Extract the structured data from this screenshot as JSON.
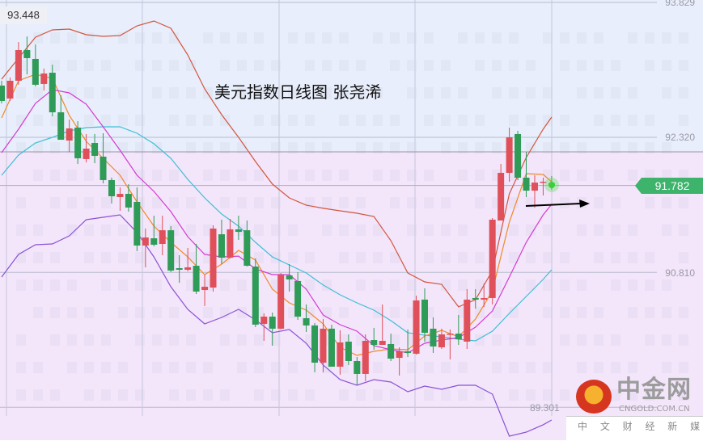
{
  "title": "美元指数日线图 张尧浠",
  "high_label": "93.448",
  "last_price": "91.782",
  "price_axis": [
    "93.829",
    "92.320",
    "90.810",
    "89.301"
  ],
  "watermark": {
    "name": "中金网",
    "domain": "CNGOLD.COM.CN",
    "slogan": "中 文 财 经 新 媒 体"
  },
  "colors": {
    "up": "#e0505a",
    "down": "#2e9b57",
    "upper_band": "#d2563e",
    "mid_band": "#3cc0d6",
    "lower_band": "#8b53d6",
    "ma_fast": "#f08a24",
    "ma_slow": "#d43cd0",
    "price_tag": "#3db36c"
  },
  "chart_data": {
    "type": "candlestick",
    "title": "美元指数日线图 张尧浠",
    "ylim": [
      88.85,
      93.86
    ],
    "y_ticks": [
      93.829,
      92.32,
      90.81,
      89.301
    ],
    "grid": true,
    "candle_format": [
      "open",
      "high",
      "low",
      "close"
    ],
    "candles": [
      [
        92.899,
        92.953,
        92.7,
        92.727
      ],
      [
        92.754,
        92.989,
        92.727,
        92.953
      ],
      [
        92.953,
        93.386,
        92.908,
        93.296
      ],
      [
        93.296,
        93.448,
        93.025,
        93.206
      ],
      [
        93.197,
        93.359,
        92.889,
        92.908
      ],
      [
        92.917,
        93.088,
        92.844,
        93.034
      ],
      [
        93.043,
        93.133,
        92.555,
        92.6
      ],
      [
        92.6,
        92.79,
        92.293,
        92.293
      ],
      [
        92.284,
        92.519,
        92.158,
        92.42
      ],
      [
        92.429,
        92.501,
        92.022,
        92.086
      ],
      [
        92.077,
        92.357,
        92.04,
        92.194
      ],
      [
        92.257,
        92.357,
        92.031,
        92.113
      ],
      [
        92.104,
        92.366,
        91.806,
        91.842
      ],
      [
        91.842,
        91.869,
        91.58,
        91.661
      ],
      [
        91.652,
        91.76,
        91.498,
        91.688
      ],
      [
        91.688,
        91.796,
        91.489,
        91.535
      ],
      [
        91.598,
        91.76,
        91.047,
        91.11
      ],
      [
        91.11,
        91.3,
        90.866,
        91.2
      ],
      [
        91.191,
        91.444,
        91.101,
        91.119
      ],
      [
        91.128,
        91.444,
        91.002,
        91.281
      ],
      [
        91.281,
        91.327,
        90.812,
        90.83
      ],
      [
        90.857,
        91.002,
        90.694,
        90.839
      ],
      [
        90.839,
        91.083,
        90.821,
        90.866
      ],
      [
        90.884,
        91.128,
        90.568,
        90.595
      ],
      [
        90.613,
        90.785,
        90.433,
        90.649
      ],
      [
        90.64,
        91.336,
        90.595,
        91.3
      ],
      [
        91.236,
        91.399,
        90.902,
        90.974
      ],
      [
        90.974,
        91.408,
        90.965,
        91.291
      ],
      [
        91.291,
        91.444,
        91.173,
        91.263
      ],
      [
        91.281,
        91.39,
        90.875,
        90.884
      ],
      [
        90.875,
        90.965,
        90.198,
        90.225
      ],
      [
        90.234,
        90.351,
        90.044,
        90.315
      ],
      [
        90.315,
        90.36,
        89.99,
        90.18
      ],
      [
        90.18,
        90.803,
        90.171,
        90.785
      ],
      [
        90.776,
        90.902,
        90.595,
        90.731
      ],
      [
        90.713,
        90.812,
        90.279,
        90.315
      ],
      [
        90.297,
        90.451,
        90.143,
        90.216
      ],
      [
        90.216,
        90.243,
        89.692,
        89.8
      ],
      [
        89.8,
        90.288,
        89.692,
        90.18
      ],
      [
        90.18,
        90.225,
        89.755,
        89.755
      ],
      [
        89.755,
        90.162,
        89.665,
        90.026
      ],
      [
        90.035,
        90.116,
        89.773,
        89.818
      ],
      [
        89.818,
        89.863,
        89.547,
        89.674
      ],
      [
        89.674,
        90.116,
        89.592,
        90.044
      ],
      [
        90.053,
        90.189,
        89.945,
        89.999
      ],
      [
        89.999,
        90.451,
        89.999,
        90.044
      ],
      [
        90.008,
        90.125,
        89.818,
        89.845
      ],
      [
        89.854,
        89.972,
        89.656,
        89.927
      ],
      [
        89.927,
        90.171,
        89.863,
        89.909
      ],
      [
        89.9,
        90.55,
        89.89,
        90.496
      ],
      [
        90.505,
        90.631,
        90.035,
        90.134
      ],
      [
        90.18,
        90.306,
        89.909,
        89.981
      ],
      [
        89.972,
        90.18,
        89.954,
        90.116
      ],
      [
        90.116,
        90.171,
        89.836,
        90.125
      ],
      [
        90.125,
        90.333,
        89.999,
        90.062
      ],
      [
        90.035,
        90.622,
        89.954,
        90.505
      ],
      [
        90.523,
        90.622,
        90.405,
        90.505
      ],
      [
        90.505,
        90.685,
        90.423,
        90.523
      ],
      [
        90.523,
        91.417,
        90.451,
        91.399
      ],
      [
        91.39,
        92.022,
        91.39,
        91.923
      ],
      [
        91.923,
        92.429,
        91.824,
        92.32
      ],
      [
        92.357,
        92.393,
        91.842,
        91.869
      ],
      [
        91.869,
        92.158,
        91.652,
        91.724
      ],
      [
        91.724,
        91.896,
        91.535,
        91.814
      ],
      [
        91.814,
        91.869,
        91.67,
        91.824
      ],
      [
        91.806,
        91.887,
        91.733,
        91.782
      ]
    ],
    "line_sample_indices": [
      0,
      2,
      4,
      6,
      8,
      10,
      12,
      14,
      16,
      18,
      20,
      22,
      24,
      26,
      28,
      30,
      32,
      34,
      36,
      38,
      40,
      42,
      44,
      46,
      48,
      50,
      52,
      54,
      56,
      58,
      60,
      62,
      64,
      65
    ],
    "lines": [
      {
        "key": "upper_band",
        "values": [
          92.971,
          93.206,
          93.44,
          93.522,
          93.531,
          93.468,
          93.45,
          93.459,
          93.567,
          93.621,
          93.54,
          93.242,
          92.862,
          92.573,
          92.32,
          92.049,
          91.797,
          91.643,
          91.562,
          91.526,
          91.498,
          91.471,
          91.435,
          91.164,
          90.803,
          90.703,
          90.676,
          90.424,
          90.505,
          90.83,
          91.688,
          92.095,
          92.411,
          92.546
        ]
      },
      {
        "key": "mid_band",
        "values": [
          91.896,
          92.122,
          92.257,
          92.32,
          92.393,
          92.429,
          92.438,
          92.438,
          92.366,
          92.248,
          92.086,
          91.851,
          91.643,
          91.462,
          91.327,
          91.146,
          90.983,
          90.893,
          90.803,
          90.668,
          90.559,
          90.469,
          90.387,
          90.27,
          90.134,
          90.107,
          90.089,
          90.062,
          90.044,
          90.152,
          90.351,
          90.541,
          90.731,
          90.839
        ]
      },
      {
        "key": "lower_band",
        "values": [
          90.758,
          91.011,
          91.119,
          91.128,
          91.218,
          91.399,
          91.426,
          91.453,
          91.255,
          90.983,
          90.649,
          90.396,
          90.234,
          90.306,
          90.396,
          90.279,
          90.134,
          90.171,
          90.017,
          89.773,
          89.61,
          89.547,
          89.61,
          89.583,
          89.475,
          89.538,
          89.502,
          89.547,
          89.547,
          89.448,
          88.978,
          89.023,
          89.105,
          89.159
        ]
      },
      {
        "key": "ma_fast",
        "values": [
          92.537,
          92.953,
          93.025,
          92.98,
          92.564,
          92.275,
          92.086,
          91.896,
          91.598,
          91.327,
          91.146,
          90.983,
          90.785,
          90.902,
          91.056,
          90.947,
          90.622,
          90.469,
          90.387,
          90.234,
          89.972,
          89.881,
          89.927,
          89.954,
          89.945,
          90.098,
          90.161,
          90.089,
          90.288,
          90.604,
          91.372,
          91.914,
          91.905,
          91.824
        ]
      },
      {
        "key": "ma_slow",
        "values": [
          92.149,
          92.411,
          92.7,
          92.853,
          92.817,
          92.691,
          92.438,
          92.176,
          91.896,
          91.715,
          91.489,
          91.209,
          91.011,
          90.983,
          90.992,
          90.848,
          90.785,
          90.785,
          90.622,
          90.333,
          90.225,
          90.152,
          89.99,
          89.945,
          89.909,
          90.017,
          90.053,
          90.08,
          90.198,
          90.378,
          90.758,
          91.146,
          91.453,
          91.571
        ]
      }
    ]
  }
}
